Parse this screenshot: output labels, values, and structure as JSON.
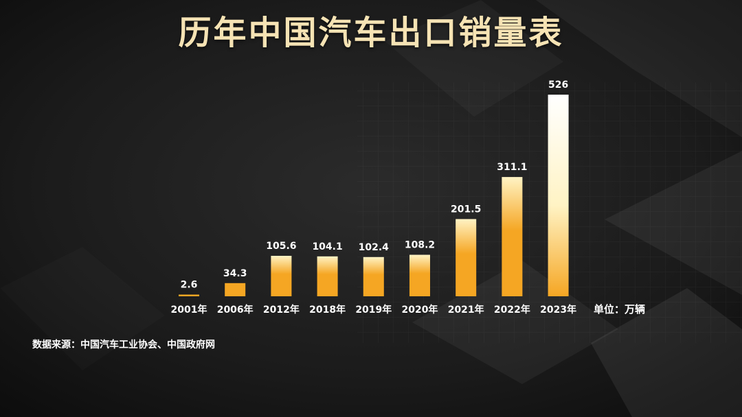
{
  "title": "历年中国汽车出口销量表",
  "source": "数据来源：中国汽车工业协会、中国政府网",
  "chart_data": {
    "type": "bar",
    "title": "历年中国汽车出口销量表",
    "categories": [
      "2001年",
      "2006年",
      "2012年",
      "2018年",
      "2019年",
      "2020年",
      "2021年",
      "2022年",
      "2023年"
    ],
    "values": [
      2.6,
      34.3,
      105.6,
      104.1,
      102.4,
      108.2,
      201.5,
      311.1,
      526
    ],
    "data_labels": [
      "2.6",
      "34.3",
      "105.6",
      "104.1",
      "102.4",
      "108.2",
      "201.5",
      "311.1",
      "526"
    ],
    "unit_label": "单位：万辆",
    "xlabel": "",
    "ylabel": "",
    "ylim": [
      0,
      526
    ],
    "grid": false,
    "legend": "none"
  },
  "colors": {
    "bar_bottom": "#f5a623",
    "bar_top": "#fff3c4",
    "bar_top_max": "#ffffff",
    "label": "#ffffff"
  }
}
